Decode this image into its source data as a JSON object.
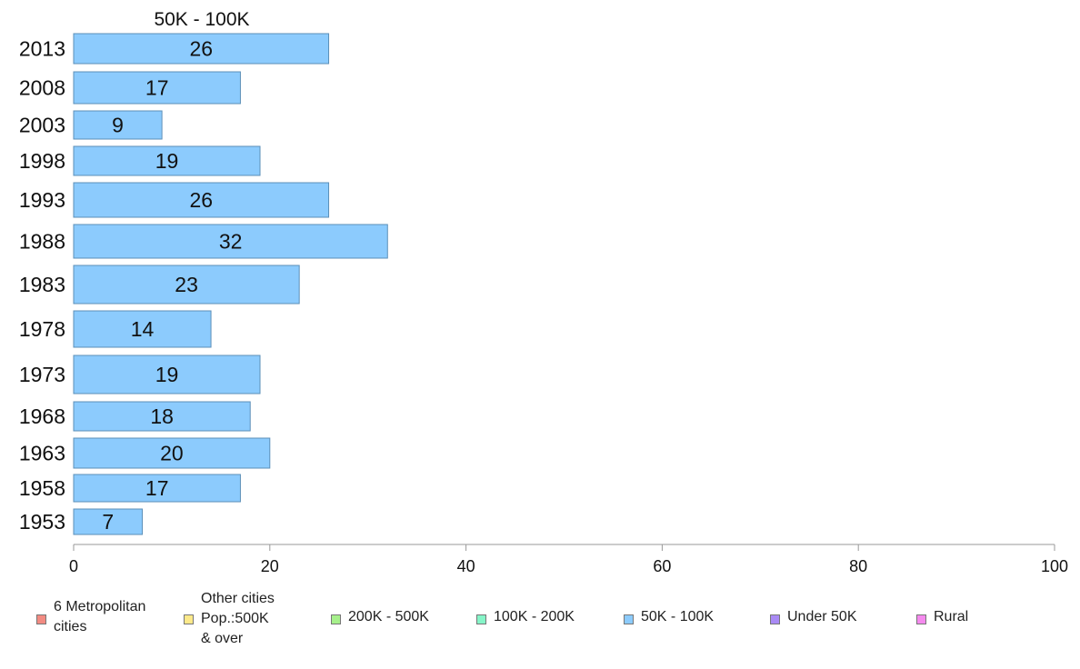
{
  "chart_data": {
    "type": "bar",
    "orientation": "horizontal",
    "panel_title": "50K - 100K",
    "categories": [
      "2013",
      "2008",
      "2003",
      "1998",
      "1993",
      "1988",
      "1983",
      "1978",
      "1973",
      "1968",
      "1963",
      "1958",
      "1953"
    ],
    "series": [
      {
        "name": "50K - 100K",
        "values": [
          26,
          17,
          9,
          19,
          26,
          32,
          23,
          14,
          19,
          18,
          20,
          17,
          7
        ],
        "color": "#8ccbfd"
      }
    ],
    "data_labels": [
      "26",
      "17",
      "9",
      "19",
      "26",
      "32",
      "23",
      "14",
      "19",
      "18",
      "20",
      "17",
      "7"
    ],
    "xlim": [
      0,
      100
    ],
    "x_ticks": [
      0,
      20,
      40,
      60,
      80,
      100
    ],
    "grid": false,
    "legend_position": "bottom",
    "legend": [
      {
        "label": "6 Metropolitan\ncities",
        "color": "#f28b82"
      },
      {
        "label": "Other cities\nPop.:500K\n& over",
        "color": "#fde98a"
      },
      {
        "label": "200K - 500K",
        "color": "#a6f08b"
      },
      {
        "label": "100K - 200K",
        "color": "#86f5c8"
      },
      {
        "label": "50K - 100K",
        "color": "#8ccbfd"
      },
      {
        "label": "Under 50K",
        "color": "#a98af5"
      },
      {
        "label": "Rural",
        "color": "#f58aee"
      }
    ]
  }
}
